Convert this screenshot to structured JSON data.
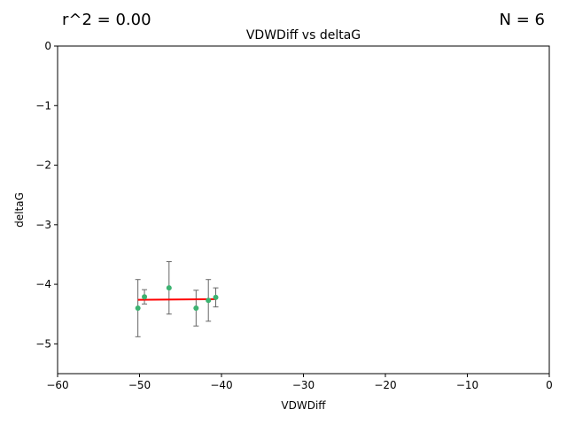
{
  "annotations": {
    "r2": "r^2 = 0.00",
    "n": "N = 6"
  },
  "chart_data": {
    "type": "scatter",
    "title": "VDWDiff vs deltaG",
    "xlabel": "VDWDiff",
    "ylabel": "deltaG",
    "xlim": [
      -60,
      0
    ],
    "ylim": [
      -5.5,
      0
    ],
    "xticks": [
      -60,
      -50,
      -40,
      -30,
      -20,
      -10,
      0
    ],
    "xtick_labels": [
      "−60",
      "−50",
      "−40",
      "−30",
      "−20",
      "−10",
      "0"
    ],
    "yticks": [
      0,
      -1,
      -2,
      -3,
      -4,
      -5
    ],
    "ytick_labels": [
      "0",
      "−1",
      "−2",
      "−3",
      "−4",
      "−5"
    ],
    "grid": false,
    "point_color": "#3cb371",
    "errorbar_color": "#666666",
    "fit_color": "#ff0000",
    "points": [
      {
        "x": -50.2,
        "y": -4.4,
        "yerr": 0.48
      },
      {
        "x": -49.4,
        "y": -4.21,
        "yerr": 0.12
      },
      {
        "x": -46.4,
        "y": -4.06,
        "yerr": 0.44
      },
      {
        "x": -43.1,
        "y": -4.4,
        "yerr": 0.3
      },
      {
        "x": -41.6,
        "y": -4.27,
        "yerr": 0.35
      },
      {
        "x": -40.7,
        "y": -4.22,
        "yerr": 0.16
      }
    ],
    "fit_line": {
      "x": [
        -50.2,
        -40.7
      ],
      "y": [
        -4.26,
        -4.25
      ]
    }
  }
}
